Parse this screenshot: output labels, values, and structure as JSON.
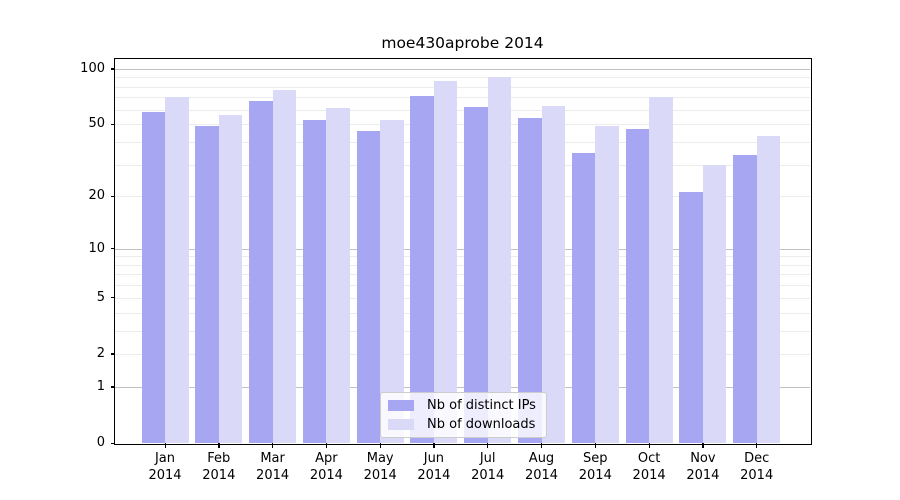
{
  "chart_data": {
    "type": "bar",
    "title": "moe430aprobe 2014",
    "categories": [
      "Jan",
      "Feb",
      "Mar",
      "Apr",
      "May",
      "Jun",
      "Jul",
      "Aug",
      "Sep",
      "Oct",
      "Nov",
      "Dec"
    ],
    "category_year": "2014",
    "series": [
      {
        "name": "Nb of distinct IPs",
        "color": "#a6a6f2",
        "values": [
          58,
          49,
          67,
          53,
          46,
          71,
          62,
          54,
          35,
          47,
          21,
          34
        ]
      },
      {
        "name": "Nb of downloads",
        "color": "#dadaf8",
        "values": [
          70,
          56,
          77,
          61,
          53,
          86,
          90,
          63,
          49,
          70,
          30,
          43
        ]
      }
    ],
    "yscale": "log1p",
    "ylim": [
      0,
      113
    ],
    "yticks": [
      100,
      50,
      20,
      10,
      5,
      2,
      1,
      0
    ],
    "major_gridlines": [
      1,
      10,
      100
    ],
    "minor_gridlines": [
      2,
      3,
      4,
      5,
      6,
      7,
      8,
      9,
      20,
      30,
      40,
      50,
      60,
      70,
      80,
      90
    ],
    "grid": true,
    "legend_position": "bottom-center",
    "xlabel": "",
    "ylabel": ""
  },
  "colors": {
    "background": "#ffffff",
    "spine": "#000000",
    "major_grid": "#c2c2c2",
    "minor_grid": "#ececec",
    "text": "#000000",
    "legend_border": "#cccccc"
  }
}
